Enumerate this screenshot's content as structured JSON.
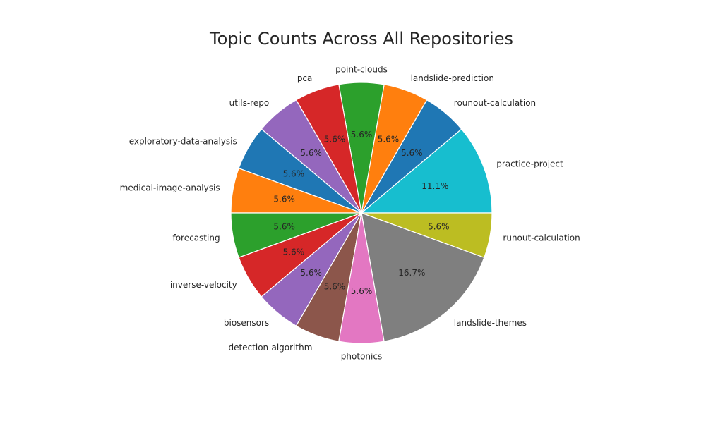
{
  "chart_data": {
    "type": "pie",
    "title": "Topic Counts Across All Repositories",
    "start_angle_deg": 0,
    "direction": "counterclockwise",
    "pct_format": "1 decimal",
    "slices": [
      {
        "label": "practice-project",
        "value": 2,
        "pct_label": "11.1%",
        "color": "#17becf"
      },
      {
        "label": "rounout-calculation",
        "value": 1,
        "pct_label": "5.6%",
        "color": "#1f77b4"
      },
      {
        "label": "landslide-prediction",
        "value": 1,
        "pct_label": "5.6%",
        "color": "#ff7f0e"
      },
      {
        "label": "point-clouds",
        "value": 1,
        "pct_label": "5.6%",
        "color": "#2ca02c"
      },
      {
        "label": "pca",
        "value": 1,
        "pct_label": "5.6%",
        "color": "#d62728"
      },
      {
        "label": "utils-repo",
        "value": 1,
        "pct_label": "5.6%",
        "color": "#9467bd"
      },
      {
        "label": "exploratory-data-analysis",
        "value": 1,
        "pct_label": "5.6%",
        "color": "#1f77b4"
      },
      {
        "label": "medical-image-analysis",
        "value": 1,
        "pct_label": "5.6%",
        "color": "#ff7f0e"
      },
      {
        "label": "forecasting",
        "value": 1,
        "pct_label": "5.6%",
        "color": "#2ca02c"
      },
      {
        "label": "inverse-velocity",
        "value": 1,
        "pct_label": "5.6%",
        "color": "#d62728"
      },
      {
        "label": "biosensors",
        "value": 1,
        "pct_label": "5.6%",
        "color": "#9467bd"
      },
      {
        "label": "detection-algorithm",
        "value": 1,
        "pct_label": "5.6%",
        "color": "#8c564b"
      },
      {
        "label": "photonics",
        "value": 1,
        "pct_label": "5.6%",
        "color": "#e377c2"
      },
      {
        "label": "landslide-themes",
        "value": 3,
        "pct_label": "16.7%",
        "color": "#7f7f7f"
      },
      {
        "label": "runout-calculation",
        "value": 1,
        "pct_label": "5.6%",
        "color": "#bcbd22"
      }
    ]
  }
}
